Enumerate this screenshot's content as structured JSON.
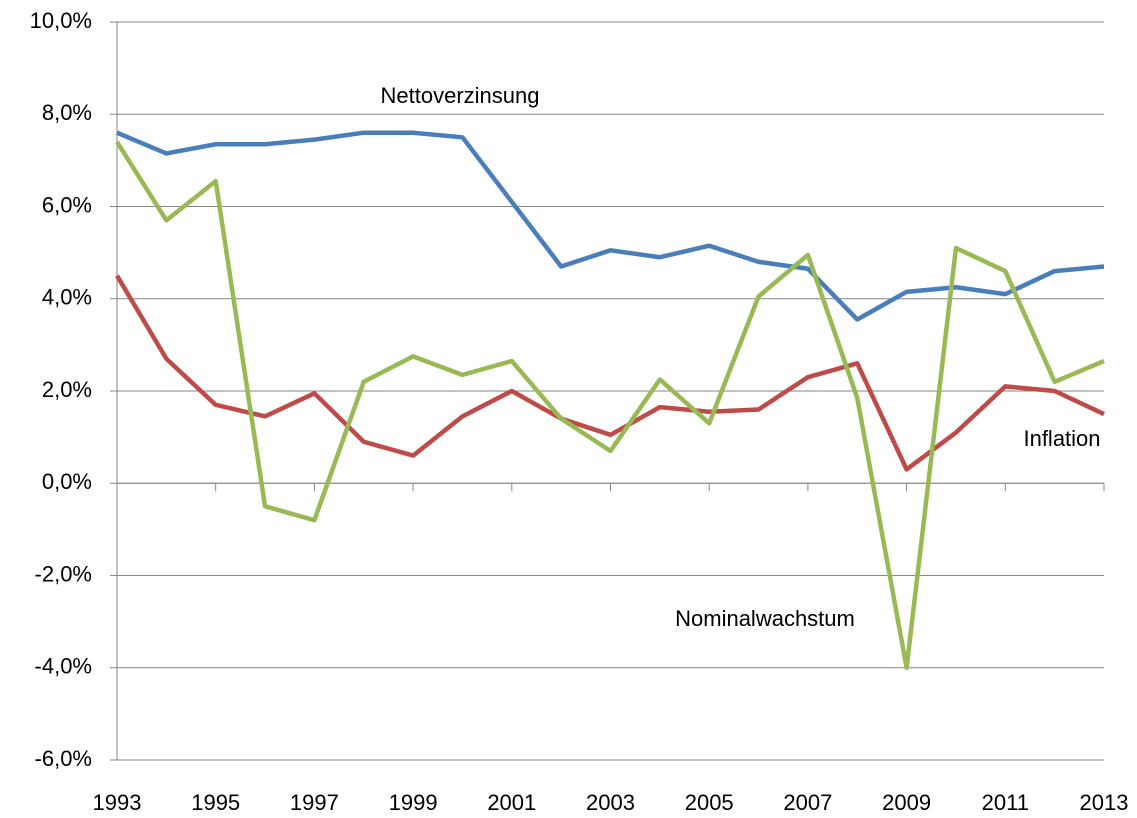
{
  "chart_data": {
    "type": "line",
    "x": [
      1993,
      1994,
      1995,
      1996,
      1997,
      1998,
      1999,
      2000,
      2001,
      2002,
      2003,
      2004,
      2005,
      2006,
      2007,
      2008,
      2009,
      2010,
      2011,
      2012,
      2013
    ],
    "series": [
      {
        "name": "Nettoverzinsung",
        "color": "#4a7ebb",
        "values": [
          7.6,
          7.15,
          7.35,
          7.35,
          7.45,
          7.6,
          7.6,
          7.5,
          6.1,
          4.7,
          5.05,
          4.9,
          5.15,
          4.8,
          4.65,
          3.55,
          4.15,
          4.25,
          4.1,
          4.6,
          4.7
        ]
      },
      {
        "name": "Inflation",
        "color": "#be4b48",
        "values": [
          4.5,
          2.7,
          1.7,
          1.45,
          1.95,
          0.9,
          0.6,
          1.45,
          2.0,
          1.4,
          1.05,
          1.65,
          1.55,
          1.6,
          2.3,
          2.6,
          0.3,
          1.1,
          2.1,
          2.0,
          1.5
        ]
      },
      {
        "name": "Nominalwachstum",
        "color": "#98b954",
        "values": [
          7.4,
          5.7,
          6.55,
          -0.5,
          -0.8,
          2.2,
          2.75,
          2.35,
          2.65,
          1.4,
          0.7,
          2.25,
          1.3,
          4.05,
          4.95,
          1.85,
          -4.0,
          5.1,
          4.6,
          2.2,
          2.65
        ]
      }
    ],
    "xlim": [
      1993,
      2013
    ],
    "xticks": [
      1993,
      1995,
      1997,
      1999,
      2001,
      2003,
      2005,
      2007,
      2009,
      2011,
      2013
    ],
    "ylim": [
      -6,
      10
    ],
    "yticks": [
      {
        "value": -6,
        "label": "-6,0%"
      },
      {
        "value": -4,
        "label": "-4,0%"
      },
      {
        "value": -2,
        "label": "-2,0%"
      },
      {
        "value": 0,
        "label": "0,0%"
      },
      {
        "value": 2,
        "label": "2,0%"
      },
      {
        "value": 4,
        "label": "4,0%"
      },
      {
        "value": 6,
        "label": "6,0%"
      },
      {
        "value": 8,
        "label": "8,0%"
      },
      {
        "value": 10,
        "label": "10,0%"
      }
    ],
    "grid": true
  }
}
